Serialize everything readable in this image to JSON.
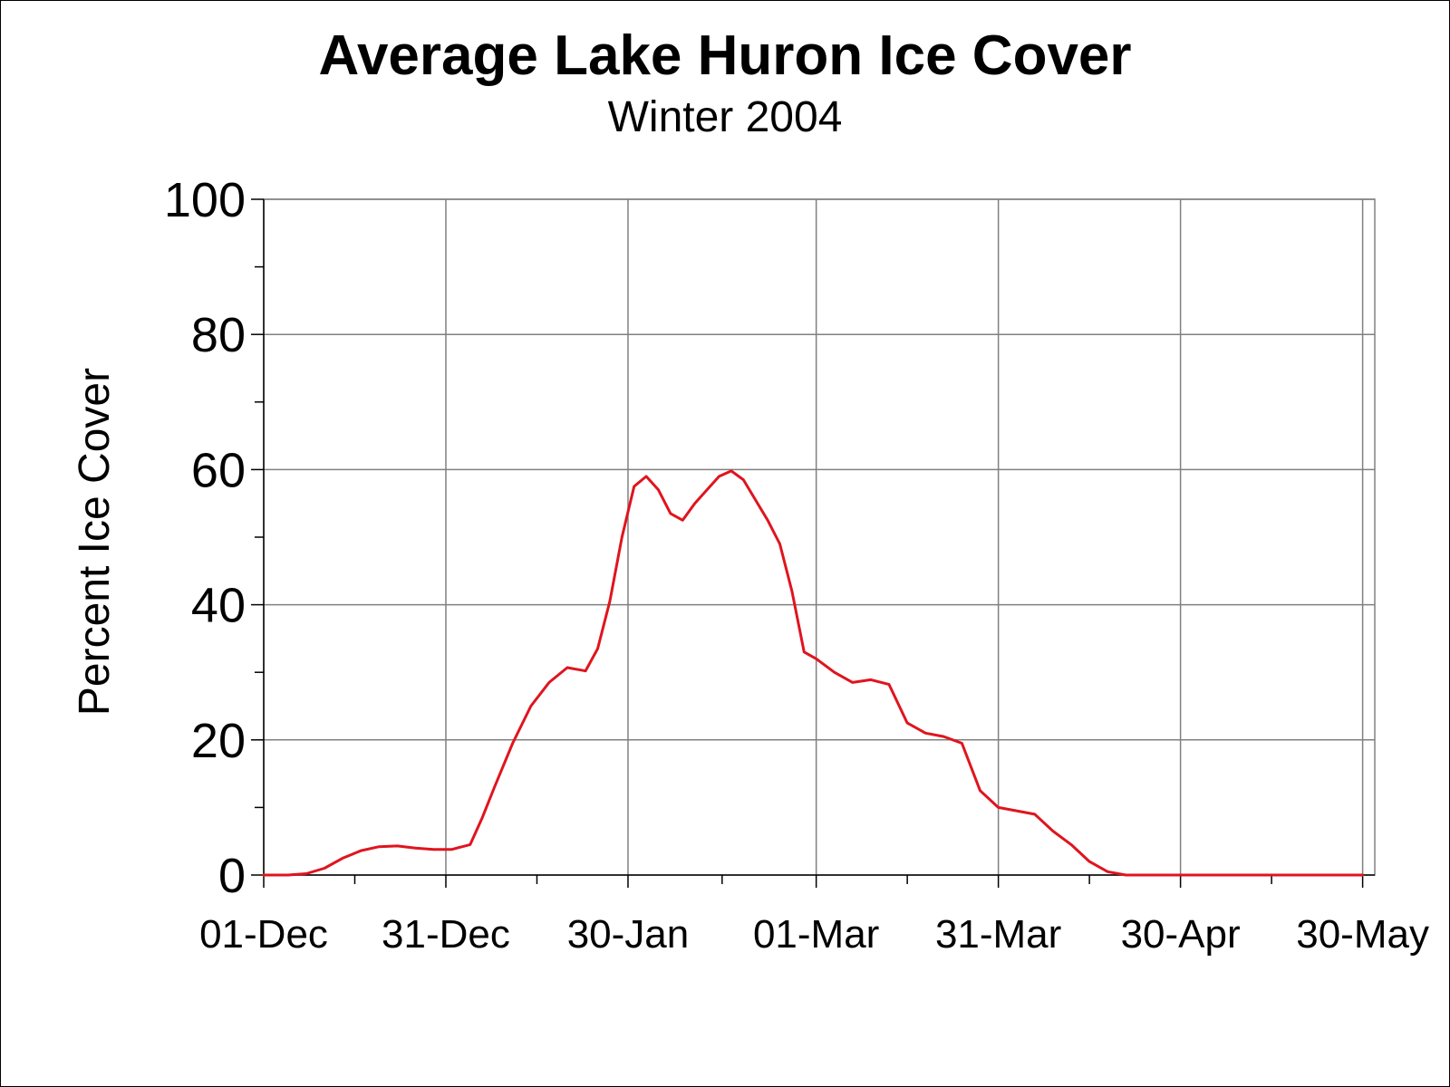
{
  "chart_data": {
    "type": "line",
    "title": "Average Lake Huron Ice Cover",
    "subtitle": "Winter 2004",
    "ylabel": "Percent Ice Cover",
    "xlabel": "",
    "ylim": [
      0,
      100
    ],
    "xlim": [
      "2003-12-01",
      "2004-06-01"
    ],
    "y_ticks": [
      0,
      20,
      40,
      60,
      80,
      100
    ],
    "y_tick_labels": [
      "0",
      "20",
      "40",
      "60",
      "80",
      "100"
    ],
    "x_ticks": [
      "2003-12-01",
      "2003-12-31",
      "2004-01-30",
      "2004-03-01",
      "2004-03-31",
      "2004-04-30",
      "2004-05-30"
    ],
    "x_tick_labels": [
      "01-Dec",
      "31-Dec",
      "30-Jan",
      "01-Mar",
      "31-Mar",
      "30-Apr",
      "30-May"
    ],
    "grid": true,
    "legend": "none",
    "series": [
      {
        "color": "#e0141e",
        "x": [
          "2003-12-01",
          "2003-12-05",
          "2003-12-08",
          "2003-12-11",
          "2003-12-14",
          "2003-12-17",
          "2003-12-20",
          "2003-12-23",
          "2003-12-26",
          "2003-12-29",
          "2004-01-01",
          "2004-01-04",
          "2004-01-06",
          "2004-01-08",
          "2004-01-11",
          "2004-01-14",
          "2004-01-17",
          "2004-01-20",
          "2004-01-23",
          "2004-01-25",
          "2004-01-27",
          "2004-01-29",
          "2004-01-31",
          "2004-02-02",
          "2004-02-04",
          "2004-02-06",
          "2004-02-08",
          "2004-02-10",
          "2004-02-12",
          "2004-02-14",
          "2004-02-16",
          "2004-02-18",
          "2004-02-20",
          "2004-02-22",
          "2004-02-24",
          "2004-02-26",
          "2004-02-28",
          "2004-03-01",
          "2004-03-04",
          "2004-03-07",
          "2004-03-10",
          "2004-03-13",
          "2004-03-16",
          "2004-03-19",
          "2004-03-22",
          "2004-03-25",
          "2004-03-28",
          "2004-03-31",
          "2004-04-03",
          "2004-04-06",
          "2004-04-09",
          "2004-04-12",
          "2004-04-15",
          "2004-04-18",
          "2004-04-21",
          "2004-04-24",
          "2004-04-27",
          "2004-04-30",
          "2004-05-05",
          "2004-05-15",
          "2004-05-25",
          "2004-05-30"
        ],
        "values": [
          0,
          0,
          0.2,
          1.0,
          2.5,
          3.6,
          4.2,
          4.3,
          4.0,
          3.8,
          3.8,
          4.5,
          8.5,
          13,
          19.5,
          25,
          28.5,
          30.7,
          30.2,
          33.5,
          40.5,
          50,
          57.5,
          59,
          57,
          53.5,
          52.5,
          55,
          57,
          59,
          59.8,
          58.5,
          55.5,
          52.5,
          49,
          42,
          33,
          32,
          30,
          28.5,
          28.9,
          28.2,
          22.5,
          21,
          20.5,
          19.5,
          12.5,
          10,
          9.5,
          9.0,
          6.5,
          4.5,
          2,
          0.5,
          0,
          0,
          0,
          0,
          0,
          0,
          0,
          0
        ]
      }
    ]
  }
}
